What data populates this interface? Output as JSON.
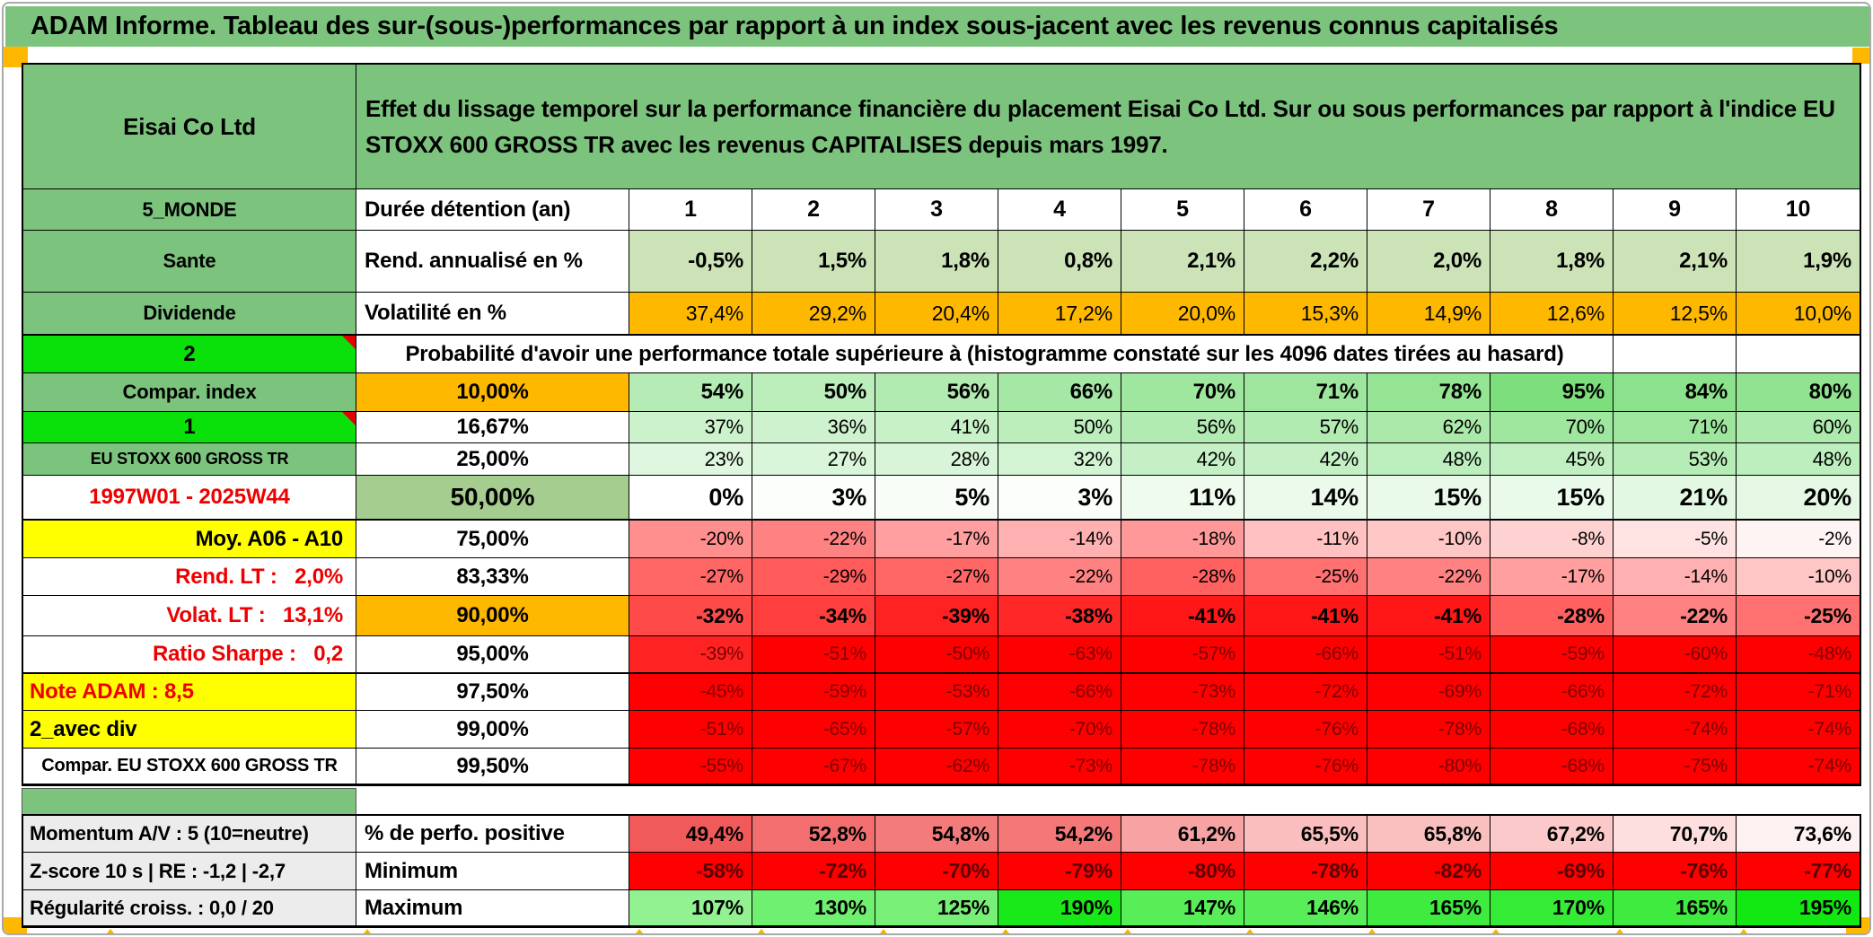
{
  "title": "ADAM Informe. Tableau des sur-(sous-)performances par rapport à un index sous-jacent avec les revenus connus capitalisés",
  "header": {
    "instrument": "Eisai Co Ltd",
    "description": "Effet du lissage temporel sur la performance financière du placement Eisai Co Ltd. Sur ou sous performances par rapport à l'indice EU STOXX 600 GROSS TR avec les revenus CAPITALISES depuis mars 1997."
  },
  "colors": {
    "band_green": "#7cc47e",
    "bright_green": "#0ae00a",
    "sage": "#cbe3b7",
    "sage_dark": "#a5cd8f",
    "orange": "#ffb800",
    "yellow": "#ffff00",
    "red_fill": "#ff0000",
    "red_text": "#ee0000",
    "maroon_text": "#7b0000",
    "gray_label": "#ececec",
    "prob_green_max": "#76dc76",
    "max_green": "#12e812"
  },
  "table": {
    "rows": [
      {
        "name": "row-holding-header",
        "label": "5_MONDE",
        "labelClass": "green",
        "col2": "Durée détention (an)",
        "col2Class": "",
        "cells": [
          "1",
          "2",
          "3",
          "4",
          "5",
          "6",
          "7",
          "8",
          "9",
          "10"
        ],
        "scale": "white",
        "cellClass": "year"
      },
      {
        "name": "row-sante",
        "label": "Sante",
        "labelClass": "green",
        "col2": "Rend. annualisé en %",
        "col2Class": "",
        "cells": [
          "-0,5%",
          "1,5%",
          "1,8%",
          "0,8%",
          "2,1%",
          "2,2%",
          "2,0%",
          "1,8%",
          "2,1%",
          "1,9%"
        ],
        "scale": "sage",
        "cellClass": "b fs24"
      },
      {
        "name": "row-dividende",
        "label": "Dividende",
        "labelClass": "green",
        "col2": "Volatilité en %",
        "col2Class": "",
        "cells": [
          "37,4%",
          "29,2%",
          "20,4%",
          "17,2%",
          "20,0%",
          "15,3%",
          "14,9%",
          "12,6%",
          "12,5%",
          "10,0%"
        ],
        "scale": "orange",
        "cellClass": "fs23"
      },
      {
        "name": "row-prob-note",
        "label": "2",
        "labelClass": "bright big",
        "corner": true,
        "merged": "Probabilité d'avoir une performance totale supérieure à (histogramme constaté sur les 4096 dates tirées au hasard)",
        "cells": [
          "",
          ""
        ],
        "scale": "white",
        "cellClass": "",
        "thickTop": true
      },
      {
        "name": "row-p10",
        "label": "Compar. index",
        "labelClass": "green",
        "col2": "10,00%",
        "col2Class": "center orange",
        "cells": [
          "54%",
          "50%",
          "56%",
          "66%",
          "70%",
          "71%",
          "78%",
          "95%",
          "84%",
          "80%"
        ],
        "scale": "prob",
        "cellClass": "b fs24"
      },
      {
        "name": "row-p16",
        "label": "1",
        "labelClass": "bright big",
        "corner": true,
        "col2": "16,67%",
        "col2Class": "center",
        "cells": [
          "37%",
          "36%",
          "41%",
          "50%",
          "56%",
          "57%",
          "62%",
          "70%",
          "71%",
          "60%"
        ],
        "scale": "prob",
        "cellClass": ""
      },
      {
        "name": "row-p25",
        "label": "EU STOXX 600 GROSS TR",
        "labelClass": "green small",
        "col2": "25,00%",
        "col2Class": "center",
        "cells": [
          "23%",
          "27%",
          "28%",
          "32%",
          "42%",
          "42%",
          "48%",
          "45%",
          "53%",
          "48%"
        ],
        "scale": "prob",
        "cellClass": ""
      },
      {
        "name": "row-p50",
        "label": "1997W01 - 2025W44",
        "labelClass": "white redtext big",
        "col2": "50,00%",
        "col2Class": "center sagedark big",
        "cells": [
          "0%",
          "3%",
          "5%",
          "3%",
          "11%",
          "14%",
          "15%",
          "15%",
          "21%",
          "20%"
        ],
        "scale": "prob",
        "cellClass": "b fs27"
      },
      {
        "name": "row-p75",
        "label": "Moy. A06 - A10",
        "labelClass": "yellow right big",
        "col2": "75,00%",
        "col2Class": "center",
        "cells": [
          "-20%",
          "-22%",
          "-17%",
          "-14%",
          "-18%",
          "-11%",
          "-10%",
          "-8%",
          "-5%",
          "-2%"
        ],
        "scale": "diff",
        "cellClass": "fs21",
        "thickTop": true
      },
      {
        "name": "row-p83",
        "label": "Rend. LT :   2,0%",
        "labelClass": "white redtext right big",
        "col2": "83,33%",
        "col2Class": "center",
        "cells": [
          "-27%",
          "-29%",
          "-27%",
          "-22%",
          "-28%",
          "-25%",
          "-22%",
          "-17%",
          "-14%",
          "-10%"
        ],
        "scale": "diff",
        "cellClass": "fs21"
      },
      {
        "name": "row-p90",
        "label": "Volat. LT :   13,1%",
        "labelClass": "white redtext right big",
        "col2": "90,00%",
        "col2Class": "center orange",
        "cells": [
          "-32%",
          "-34%",
          "-39%",
          "-38%",
          "-41%",
          "-41%",
          "-41%",
          "-28%",
          "-22%",
          "-25%"
        ],
        "scale": "diff",
        "cellClass": "b fs23"
      },
      {
        "name": "row-p95",
        "label": "Ratio Sharpe :   0,2",
        "labelClass": "white redtext right big",
        "col2": "95,00%",
        "col2Class": "center",
        "cells": [
          "-39%",
          "-51%",
          "-50%",
          "-63%",
          "-57%",
          "-66%",
          "-51%",
          "-59%",
          "-60%",
          "-48%"
        ],
        "scale": "diff",
        "cellClass": "fs21 maroon"
      },
      {
        "name": "row-p975",
        "label": "Note ADAM : 8,5",
        "labelClass": "yellow redtext left big",
        "col2": "97,50%",
        "col2Class": "center",
        "cells": [
          "-45%",
          "-59%",
          "-53%",
          "-66%",
          "-73%",
          "-72%",
          "-69%",
          "-66%",
          "-72%",
          "-71%"
        ],
        "scale": "diff",
        "cellClass": "fs21 maroon",
        "thickTop": true
      },
      {
        "name": "row-p99",
        "label": "2_avec div",
        "labelClass": "yellow left big",
        "col2": "99,00%",
        "col2Class": "center",
        "cells": [
          "-51%",
          "-65%",
          "-57%",
          "-70%",
          "-78%",
          "-76%",
          "-78%",
          "-68%",
          "-74%",
          "-74%"
        ],
        "scale": "diff",
        "cellClass": "fs21 maroon"
      },
      {
        "name": "row-p995",
        "label": "Compar. EU STOXX 600 GROSS TR",
        "labelClass": "white mid",
        "col2": "99,50%",
        "col2Class": "center",
        "cells": [
          "-55%",
          "-67%",
          "-62%",
          "-73%",
          "-78%",
          "-76%",
          "-80%",
          "-68%",
          "-75%",
          "-74%"
        ],
        "scale": "diff",
        "cellClass": "fs21 maroon"
      }
    ],
    "bottom_rows": [
      {
        "name": "row-perfpos",
        "label": "Momentum A/V : 5 (10=neutre)",
        "labelClass": "gray left",
        "col2": "% de perfo. positive",
        "col2Class": "",
        "cells": [
          "49,4%",
          "52,8%",
          "54,8%",
          "54,2%",
          "61,2%",
          "65,5%",
          "65,8%",
          "67,2%",
          "70,7%",
          "73,6%"
        ],
        "scale": "perfpos",
        "cellClass": "b fs23"
      },
      {
        "name": "row-min",
        "label": "Z-score 10 s | RE : -1,2 | -2,7",
        "labelClass": "gray left",
        "col2": "Minimum",
        "col2Class": "",
        "cells": [
          "-58%",
          "-72%",
          "-70%",
          "-79%",
          "-80%",
          "-78%",
          "-82%",
          "-69%",
          "-76%",
          "-77%"
        ],
        "scale": "red",
        "cellClass": "b fs23 darkred"
      },
      {
        "name": "row-max",
        "label": "Régularité croiss. : 0,0 / 20",
        "labelClass": "gray left",
        "col2": "Maximum",
        "col2Class": "",
        "cells": [
          "107%",
          "130%",
          "125%",
          "190%",
          "147%",
          "146%",
          "165%",
          "170%",
          "165%",
          "195%"
        ],
        "scale": "max",
        "cellClass": "b fs23"
      }
    ]
  }
}
